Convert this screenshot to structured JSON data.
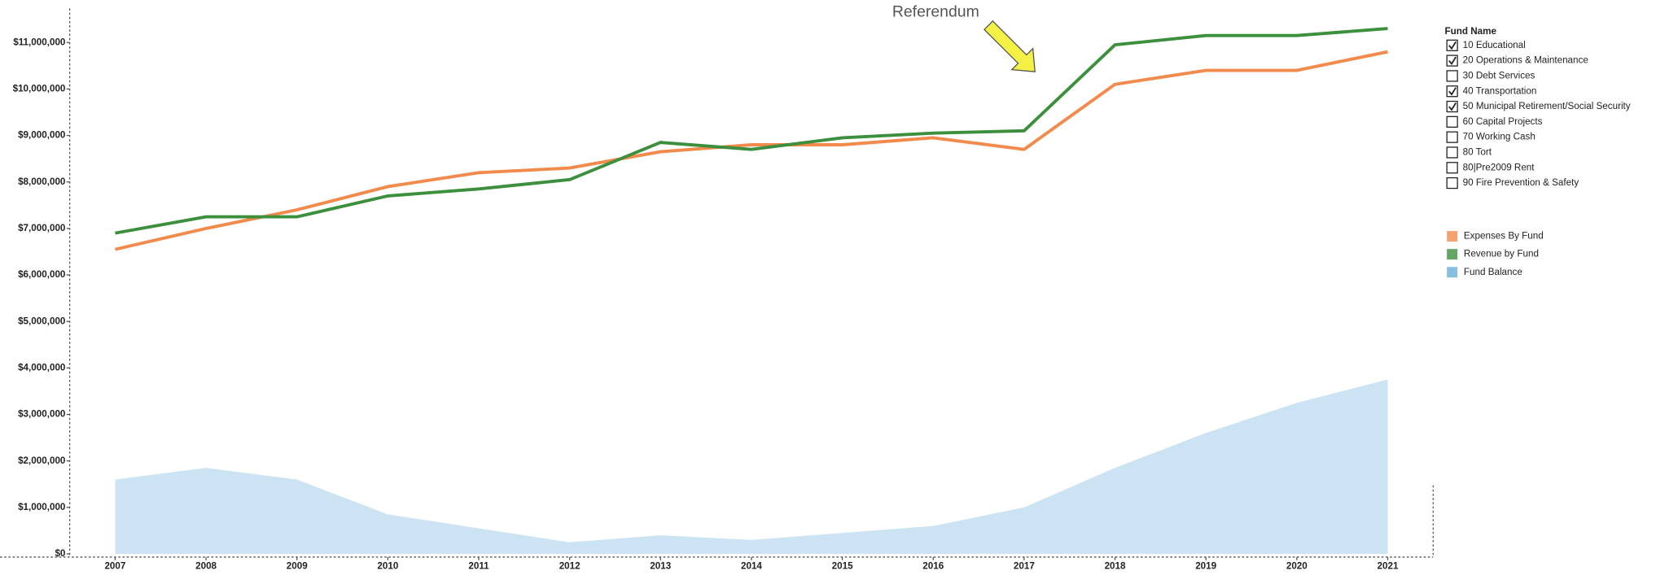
{
  "chart_data": {
    "type": "line",
    "annotation": "Referendum",
    "x": [
      2007,
      2008,
      2009,
      2010,
      2011,
      2012,
      2013,
      2014,
      2015,
      2016,
      2017,
      2018,
      2019,
      2020,
      2021
    ],
    "xlim": [
      2006.5,
      2021.5
    ],
    "ylim": [
      0,
      11800000
    ],
    "yticks": [
      {
        "value": 0,
        "label": "$0"
      },
      {
        "value": 1000000,
        "label": "$1,000,000"
      },
      {
        "value": 2000000,
        "label": "$2,000,000"
      },
      {
        "value": 3000000,
        "label": "$3,000,000"
      },
      {
        "value": 4000000,
        "label": "$4,000,000"
      },
      {
        "value": 5000000,
        "label": "$5,000,000"
      },
      {
        "value": 6000000,
        "label": "$6,000,000"
      },
      {
        "value": 7000000,
        "label": "$7,000,000"
      },
      {
        "value": 8000000,
        "label": "$8,000,000"
      },
      {
        "value": 9000000,
        "label": "$9,000,000"
      },
      {
        "value": 10000000,
        "label": "$10,000,000"
      },
      {
        "value": 11000000,
        "label": "$11,000,000"
      }
    ],
    "series": [
      {
        "name": "Expenses By Fund",
        "color": "#f28a4c",
        "kind": "line",
        "values": [
          6550000,
          7000000,
          7400000,
          7900000,
          8200000,
          8300000,
          8650000,
          8800000,
          8800000,
          8950000,
          8700000,
          10100000,
          10400000,
          10400000,
          10800000
        ]
      },
      {
        "name": "Revenue by Fund",
        "color": "#3c8f3c",
        "kind": "line",
        "values": [
          6900000,
          7250000,
          7250000,
          7700000,
          7850000,
          8050000,
          8850000,
          8700000,
          8950000,
          9050000,
          9100000,
          10950000,
          11150000,
          11150000,
          11300000
        ]
      },
      {
        "name": "Fund Balance",
        "color": "#6aaedb",
        "kind": "area",
        "values": [
          1600000,
          1850000,
          1600000,
          850000,
          550000,
          250000,
          400000,
          300000,
          450000,
          600000,
          1000000,
          1850000,
          2600000,
          3250000,
          3750000
        ]
      }
    ],
    "filter": {
      "title": "Fund Name",
      "items": [
        {
          "label": "10  Educational",
          "checked": true
        },
        {
          "label": "20  Operations & Maintenance",
          "checked": true
        },
        {
          "label": "30  Debt Services",
          "checked": false
        },
        {
          "label": "40  Transportation",
          "checked": true
        },
        {
          "label": "50  Municipal Retirement/Social Security",
          "checked": true
        },
        {
          "label": "60  Capital Projects",
          "checked": false
        },
        {
          "label": "70  Working Cash",
          "checked": false
        },
        {
          "label": "80  Tort",
          "checked": false
        },
        {
          "label": "80|Pre2009 Rent",
          "checked": false
        },
        {
          "label": "90  Fire Prevention & Safety",
          "checked": false
        }
      ]
    }
  }
}
